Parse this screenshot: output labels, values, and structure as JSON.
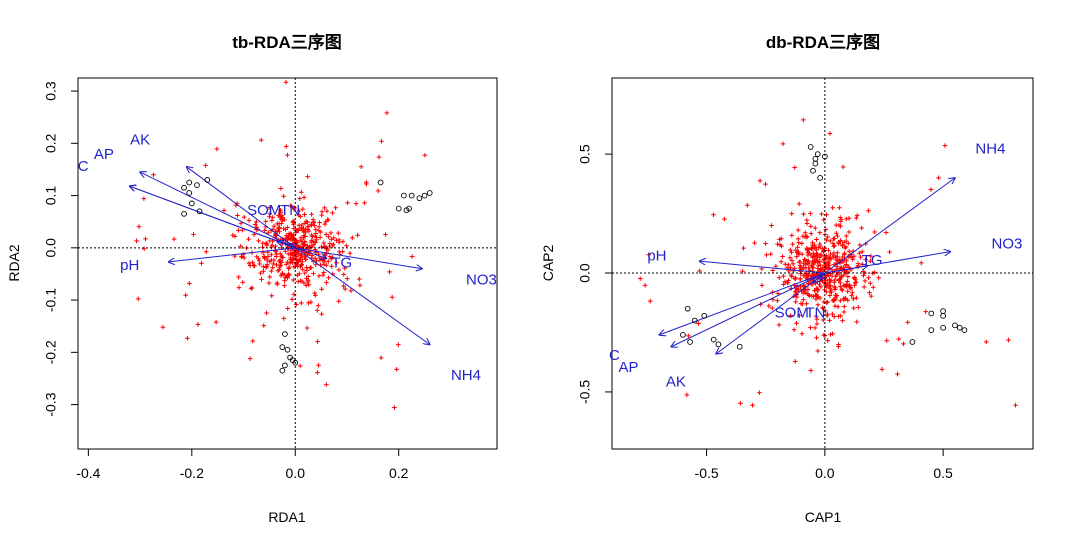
{
  "chart_data": [
    {
      "type": "scatter",
      "title": "tb-RDA三序图",
      "xlabel": "RDA1",
      "ylabel": "RDA2",
      "xlim": [
        -0.42,
        0.39
      ],
      "ylim": [
        -0.385,
        0.325
      ],
      "xticks": [
        "-0.4",
        "-0.2",
        "0.0",
        "0.2"
      ],
      "yticks": [
        "-0.3",
        "-0.2",
        "-0.1",
        "0.0",
        "0.1",
        "0.2",
        "0.3"
      ],
      "colors": {
        "vector": "#2222cc",
        "species": "#ff0000",
        "sites": "#000000"
      },
      "vectors": [
        {
          "name": "AK",
          "x": -0.3,
          "y": 0.145,
          "label_x": -0.3,
          "label_y": 0.205
        },
        {
          "name": "AP",
          "x": -0.32,
          "y": 0.118,
          "label_x": -0.37,
          "label_y": 0.178
        },
        {
          "name": "C",
          "x": -0.32,
          "y": 0.118,
          "label_x": -0.41,
          "label_y": 0.155
        },
        {
          "name": "pH",
          "x": -0.245,
          "y": -0.027,
          "label_x": -0.32,
          "label_y": -0.035
        },
        {
          "name": "NO3",
          "x": 0.245,
          "y": -0.04,
          "label_x": 0.36,
          "label_y": -0.063
        },
        {
          "name": "NH4",
          "x": 0.26,
          "y": -0.185,
          "label_x": 0.33,
          "label_y": -0.245
        },
        {
          "name": "TG",
          "x": 0.06,
          "y": -0.02,
          "label_x": 0.09,
          "label_y": -0.03
        },
        {
          "name": "TN",
          "x": -0.01,
          "y": 0.008,
          "label_x": -0.01,
          "label_y": 0.07
        },
        {
          "name": "SOM",
          "x": -0.035,
          "y": 0.012,
          "label_x": -0.06,
          "label_y": 0.07
        },
        {
          "name": "",
          "x": -0.21,
          "y": 0.155,
          "label_x": null,
          "label_y": null
        }
      ],
      "sites": [
        {
          "x": -0.17,
          "y": 0.13
        },
        {
          "x": -0.205,
          "y": 0.125
        },
        {
          "x": -0.215,
          "y": 0.115
        },
        {
          "x": -0.19,
          "y": 0.12
        },
        {
          "x": -0.2,
          "y": 0.085
        },
        {
          "x": -0.215,
          "y": 0.065
        },
        {
          "x": -0.185,
          "y": 0.07
        },
        {
          "x": -0.205,
          "y": 0.105
        },
        {
          "x": 0.165,
          "y": 0.125
        },
        {
          "x": 0.21,
          "y": 0.1
        },
        {
          "x": 0.225,
          "y": 0.1
        },
        {
          "x": 0.24,
          "y": 0.095
        },
        {
          "x": 0.25,
          "y": 0.1
        },
        {
          "x": 0.26,
          "y": 0.105
        },
        {
          "x": 0.2,
          "y": 0.075
        },
        {
          "x": 0.215,
          "y": 0.072
        },
        {
          "x": 0.22,
          "y": 0.075
        },
        {
          "x": -0.02,
          "y": -0.165
        },
        {
          "x": -0.025,
          "y": -0.19
        },
        {
          "x": -0.015,
          "y": -0.195
        },
        {
          "x": -0.01,
          "y": -0.21
        },
        {
          "x": -0.005,
          "y": -0.215
        },
        {
          "x": -0.02,
          "y": -0.225
        },
        {
          "x": -0.025,
          "y": -0.235
        },
        {
          "x": 0.0,
          "y": -0.22
        }
      ]
    },
    {
      "type": "scatter",
      "title": "db-RDA三序图",
      "xlabel": "CAP1",
      "ylabel": "CAP2",
      "xlim": [
        -0.9,
        0.88
      ],
      "ylim": [
        -0.74,
        0.82
      ],
      "xticks": [
        "-0.5",
        "0.0",
        "0.5"
      ],
      "yticks": [
        "-0.5",
        "0.0",
        "0.5"
      ],
      "colors": {
        "vector": "#2222cc",
        "species": "#ff0000",
        "sites": "#000000"
      },
      "vectors": [
        {
          "name": "NH4",
          "x": 0.55,
          "y": 0.4,
          "label_x": 0.7,
          "label_y": 0.52
        },
        {
          "name": "NO3",
          "x": 0.53,
          "y": 0.09,
          "label_x": 0.77,
          "label_y": 0.12
        },
        {
          "name": "pH",
          "x": -0.53,
          "y": 0.05,
          "label_x": -0.71,
          "label_y": 0.07
        },
        {
          "name": "AK",
          "x": -0.46,
          "y": -0.34,
          "label_x": -0.63,
          "label_y": -0.46
        },
        {
          "name": "AP",
          "x": -0.65,
          "y": -0.31,
          "label_x": -0.83,
          "label_y": -0.4
        },
        {
          "name": "C",
          "x": -0.7,
          "y": -0.26,
          "label_x": -0.89,
          "label_y": -0.35
        },
        {
          "name": "TG",
          "x": 0.18,
          "y": 0.03,
          "label_x": 0.2,
          "label_y": 0.05
        },
        {
          "name": "TN",
          "x": -0.02,
          "y": -0.03,
          "label_x": -0.04,
          "label_y": -0.17
        },
        {
          "name": "SOM",
          "x": -0.05,
          "y": -0.04,
          "label_x": -0.14,
          "label_y": -0.17
        }
      ],
      "sites": [
        {
          "x": -0.06,
          "y": 0.53
        },
        {
          "x": -0.03,
          "y": 0.5
        },
        {
          "x": -0.04,
          "y": 0.48
        },
        {
          "x": 0.0,
          "y": 0.49
        },
        {
          "x": -0.05,
          "y": 0.43
        },
        {
          "x": -0.04,
          "y": 0.46
        },
        {
          "x": -0.02,
          "y": 0.4
        },
        {
          "x": -0.58,
          "y": -0.15
        },
        {
          "x": -0.55,
          "y": -0.2
        },
        {
          "x": -0.51,
          "y": -0.18
        },
        {
          "x": -0.6,
          "y": -0.26
        },
        {
          "x": -0.57,
          "y": -0.29
        },
        {
          "x": -0.47,
          "y": -0.28
        },
        {
          "x": -0.45,
          "y": -0.3
        },
        {
          "x": -0.36,
          "y": -0.31
        },
        {
          "x": 0.45,
          "y": -0.17
        },
        {
          "x": 0.5,
          "y": -0.16
        },
        {
          "x": 0.5,
          "y": -0.18
        },
        {
          "x": 0.55,
          "y": -0.22
        },
        {
          "x": 0.57,
          "y": -0.23
        },
        {
          "x": 0.59,
          "y": -0.24
        },
        {
          "x": 0.45,
          "y": -0.24
        },
        {
          "x": 0.5,
          "y": -0.23
        },
        {
          "x": 0.37,
          "y": -0.29
        }
      ]
    }
  ]
}
